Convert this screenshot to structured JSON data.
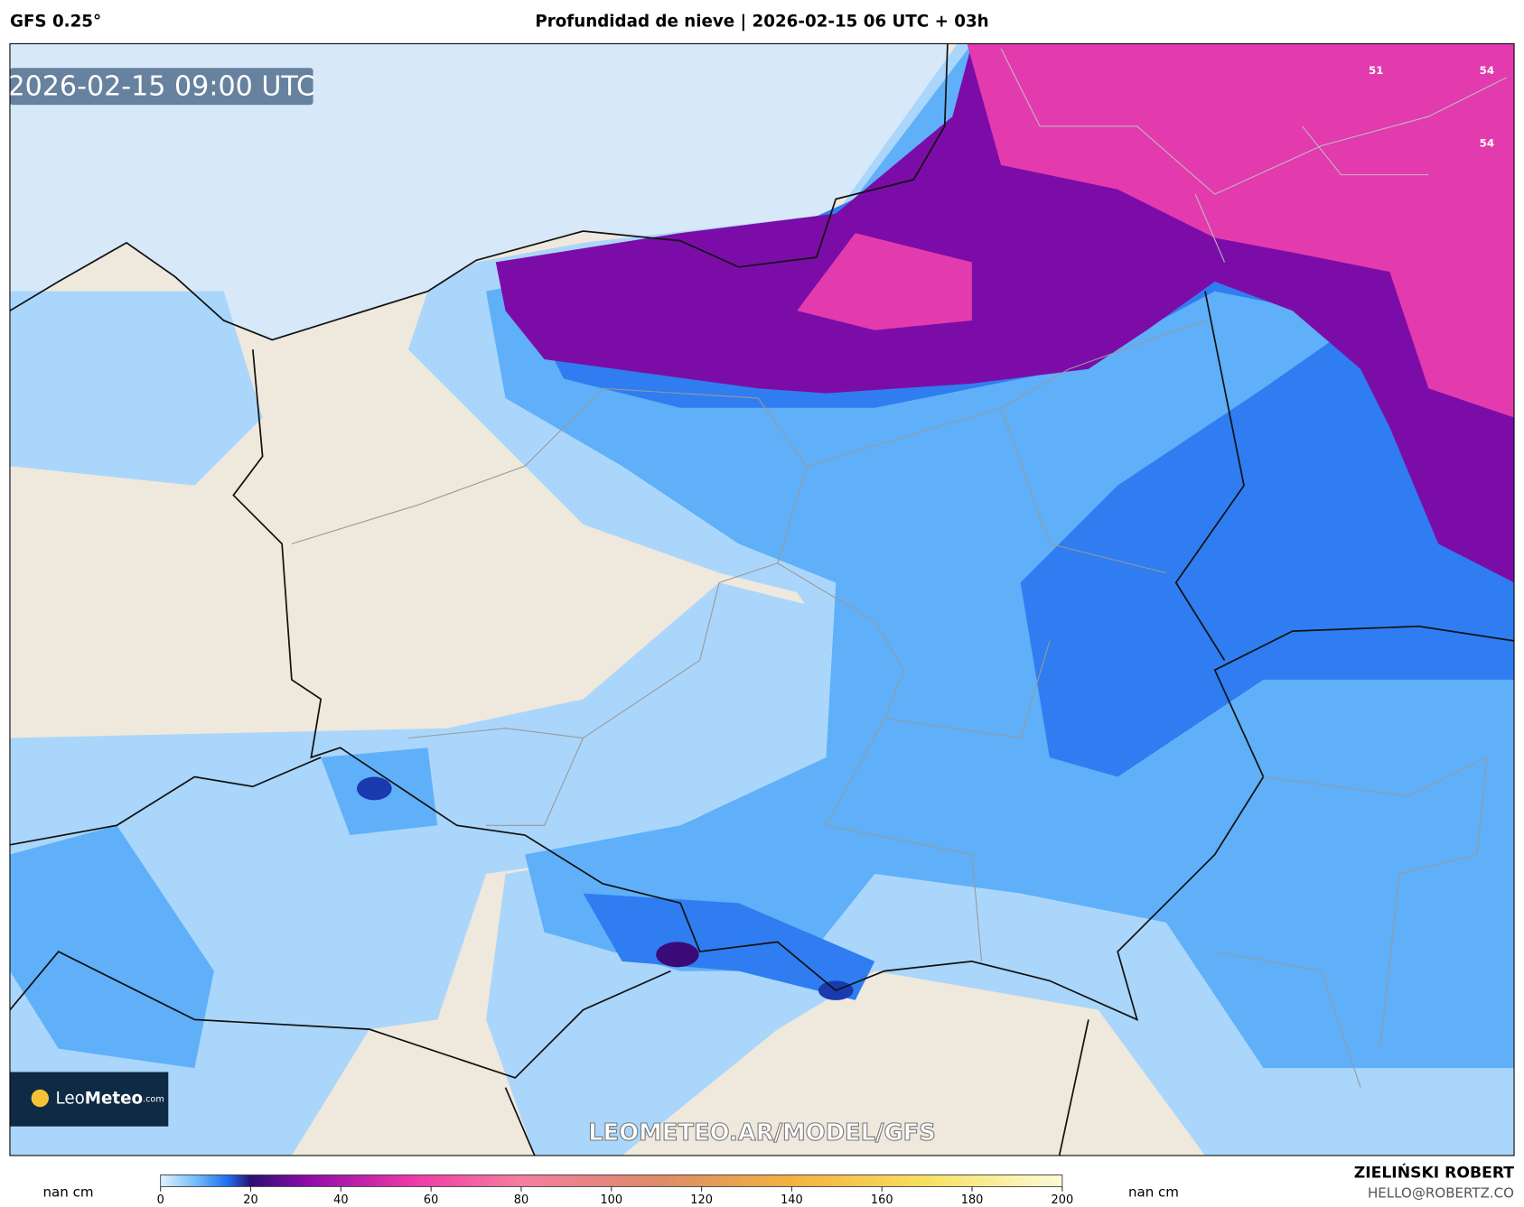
{
  "header": {
    "model": "GFS 0.25°",
    "title": "Profundidad de nieve | 2026-02-15 06 UTC + 03h"
  },
  "map": {
    "timestamp": "2026-02-15 09:00 UTC",
    "watermark": "LEOMETEO.AR/MODEL/GFS",
    "logo": {
      "name": "Leo",
      "name_bold": "Meteo",
      "suffix": ".com"
    },
    "labels": [
      "51",
      "54",
      "54"
    ]
  },
  "colorbar": {
    "left_label": "nan cm",
    "right_label": "nan cm",
    "lim": [
      0,
      200
    ],
    "ticks": [
      0,
      20,
      40,
      60,
      80,
      100,
      120,
      140,
      160,
      180,
      200
    ]
  },
  "footer": {
    "author": "ZIELIŃSKI ROBERT",
    "email": "HELLO@ROBERTZ.CO"
  }
}
